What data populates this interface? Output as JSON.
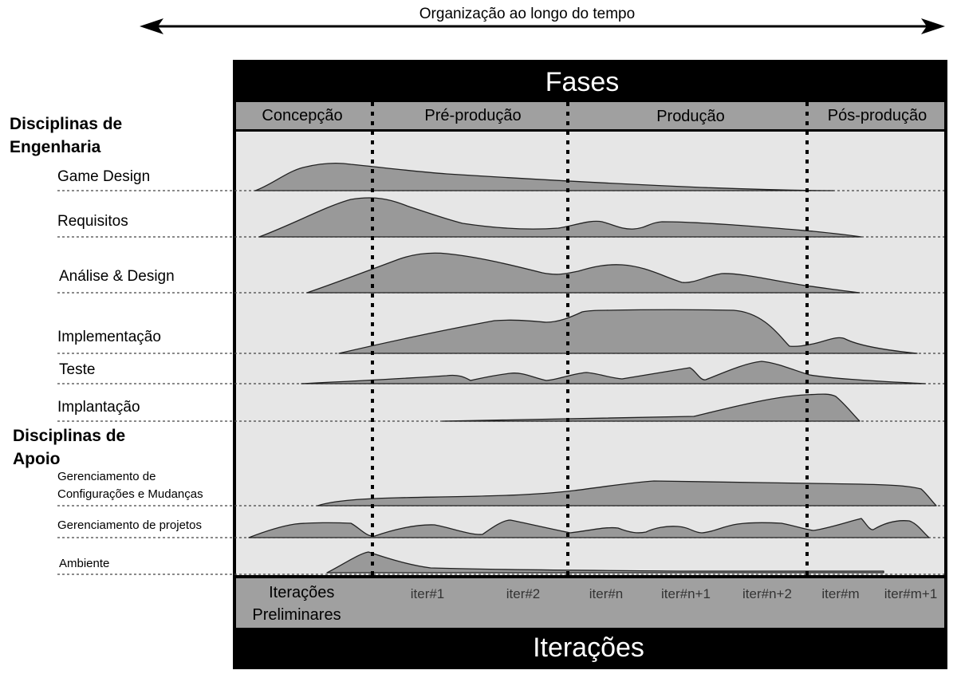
{
  "timeline": {
    "label": "Organização ao longo do tempo"
  },
  "phases": {
    "header": "Fases",
    "items": [
      "Concepção",
      "Pré-produção",
      "Produção",
      "Pós-produção"
    ]
  },
  "groups": {
    "engineering": [
      "Disciplinas de",
      "Engenharia"
    ],
    "support": [
      "Disciplinas de",
      "Apoio"
    ]
  },
  "disciplines": [
    {
      "lines": [
        "Game Design"
      ]
    },
    {
      "lines": [
        "Requisitos"
      ]
    },
    {
      "lines": [
        "Análise & Design"
      ]
    },
    {
      "lines": [
        "Implementação"
      ]
    },
    {
      "lines": [
        "Teste"
      ]
    },
    {
      "lines": [
        "Implantação"
      ]
    },
    {
      "lines": [
        "Gerenciamento de",
        "Configurações e Mudanças"
      ]
    },
    {
      "lines": [
        "Gerenciamento de projetos"
      ]
    },
    {
      "lines": [
        "Ambiente"
      ]
    }
  ],
  "iterations": {
    "footer": "Iterações",
    "preliminary": [
      "Iterações",
      "Preliminares"
    ],
    "items": [
      "iter#1",
      "iter#2",
      "iter#n",
      "iter#n+1",
      "iter#n+2",
      "iter#m",
      "iter#m+1"
    ]
  },
  "colors": {
    "frame": "#000000",
    "band": "#a0a0a0",
    "canvas": "#e6e6e6",
    "hump_fill": "#999999",
    "hump_stroke": "#222222"
  }
}
